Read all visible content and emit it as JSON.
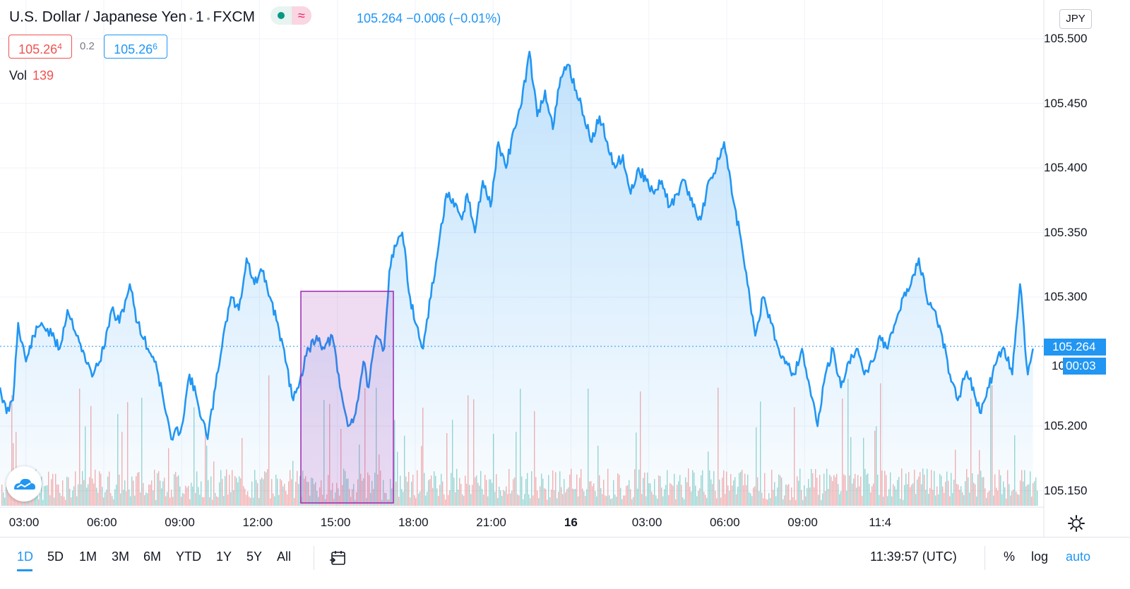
{
  "header": {
    "symbol": "U.S. Dollar / Japanese Yen",
    "interval": "1",
    "exchange": "FXCM",
    "indicator_symbol": "≈",
    "last": "105.264",
    "change": "−0.006",
    "change_pct": "(−0.01%)"
  },
  "quotes": {
    "bid_main": "105.26",
    "bid_small": "4",
    "spread": "0.2",
    "ask_main": "105.26",
    "ask_small": "6"
  },
  "volume": {
    "label": "Vol",
    "value": "139"
  },
  "currency": "JPY",
  "price_tag": "105.264",
  "countdown": "00:03",
  "countdown_prefix": "10",
  "colors": {
    "line": "#2196f3",
    "vol_up": "#26a69a",
    "vol_down": "#ef5350",
    "highlight": "#9c27b0"
  },
  "chart_data": {
    "type": "area",
    "title": "U.S. Dollar / Japanese Yen · 1 · FXCM",
    "xlabel": "",
    "ylabel": "",
    "ylim": [
      105.146,
      105.5
    ],
    "y_ticks": [
      "105.500",
      "105.450",
      "105.400",
      "105.350",
      "105.300",
      "105.200",
      "105.150"
    ],
    "x_ticks": [
      "03:00",
      "06:00",
      "09:00",
      "12:00",
      "15:00",
      "18:00",
      "21:00",
      "16",
      "03:00",
      "06:00",
      "09:00",
      "11:4"
    ],
    "current_price": 105.264,
    "grid": true,
    "series": [
      {
        "x_hours": [
          0.0,
          0.25,
          0.5,
          0.7,
          1.0,
          1.3,
          1.6,
          2.0,
          2.3,
          2.6,
          3.0,
          3.3,
          3.6,
          4.0,
          4.3,
          4.6,
          5.0,
          5.3,
          5.7,
          6.0,
          6.3,
          6.6,
          7.0,
          7.3,
          7.6,
          8.0,
          8.3,
          8.6,
          8.9,
          9.2,
          9.5,
          9.8,
          10.1,
          10.4,
          10.7,
          11.0,
          11.3,
          11.6,
          11.9,
          12.2,
          12.5,
          12.8,
          13.1,
          13.4,
          13.7,
          14.0,
          14.2,
          14.5,
          14.8,
          15.0,
          15.2,
          15.5,
          15.8,
          16.0,
          16.3,
          16.6,
          16.9,
          17.2,
          17.5,
          17.8,
          18.0,
          18.3,
          18.6,
          18.9,
          19.2,
          19.5,
          19.8,
          20.1,
          20.4,
          20.7,
          21.0,
          21.3,
          21.6,
          21.9,
          22.2,
          22.5,
          22.8,
          23.1,
          23.4,
          23.7,
          24.0,
          24.3,
          24.6,
          24.9,
          25.2,
          25.5,
          25.8,
          26.1,
          26.4,
          26.7,
          27.0,
          27.3,
          27.6,
          27.9,
          28.2,
          28.5,
          28.8,
          29.1,
          29.4,
          29.7,
          30.0,
          30.3,
          30.6,
          30.9,
          31.2,
          31.5,
          31.8,
          32.1,
          32.4,
          32.7,
          33.0,
          33.3,
          33.6,
          33.9,
          34.2,
          34.5,
          34.8,
          35.1,
          35.4,
          35.7,
          36.0,
          36.3,
          36.6,
          36.9,
          37.2,
          37.5,
          37.8,
          38.1,
          38.4,
          38.7,
          39.0,
          39.3,
          39.6,
          39.8
        ],
        "values": [
          105.23,
          105.21,
          105.22,
          105.28,
          105.25,
          105.27,
          105.28,
          105.27,
          105.26,
          105.29,
          105.27,
          105.25,
          105.24,
          105.26,
          105.29,
          105.28,
          105.31,
          105.28,
          105.26,
          105.25,
          105.22,
          105.19,
          105.2,
          105.24,
          105.22,
          105.19,
          105.23,
          105.27,
          105.3,
          105.29,
          105.33,
          105.31,
          105.32,
          105.3,
          105.28,
          105.25,
          105.22,
          105.24,
          105.26,
          105.27,
          105.26,
          105.27,
          105.23,
          105.2,
          105.21,
          105.25,
          105.23,
          105.27,
          105.26,
          105.32,
          105.34,
          105.35,
          105.3,
          105.28,
          105.26,
          105.3,
          105.34,
          105.38,
          105.37,
          105.36,
          105.38,
          105.35,
          105.39,
          105.37,
          105.42,
          105.4,
          105.43,
          105.45,
          105.49,
          105.44,
          105.46,
          105.43,
          105.47,
          105.48,
          105.46,
          105.44,
          105.42,
          105.44,
          105.42,
          105.4,
          105.41,
          105.38,
          105.4,
          105.39,
          105.38,
          105.39,
          105.37,
          105.38,
          105.39,
          105.37,
          105.36,
          105.39,
          105.4,
          105.42,
          105.38,
          105.35,
          105.31,
          105.27,
          105.3,
          105.28,
          105.26,
          105.25,
          105.24,
          105.26,
          105.23,
          105.2,
          105.24,
          105.26,
          105.23,
          105.25,
          105.26,
          105.24,
          105.25,
          105.27,
          105.26,
          105.28,
          105.3,
          105.31,
          105.33,
          105.3,
          105.29,
          105.27,
          105.24,
          105.22,
          105.24,
          105.23,
          105.21,
          105.23,
          105.25,
          105.26,
          105.24,
          105.31,
          105.24,
          105.26
        ]
      }
    ]
  },
  "bottom": {
    "ranges": [
      "1D",
      "5D",
      "1M",
      "3M",
      "6M",
      "YTD",
      "1Y",
      "5Y",
      "All"
    ],
    "active_range": "1D",
    "time": "11:39:57 (UTC)",
    "percent": "%",
    "log": "log",
    "auto": "auto"
  }
}
